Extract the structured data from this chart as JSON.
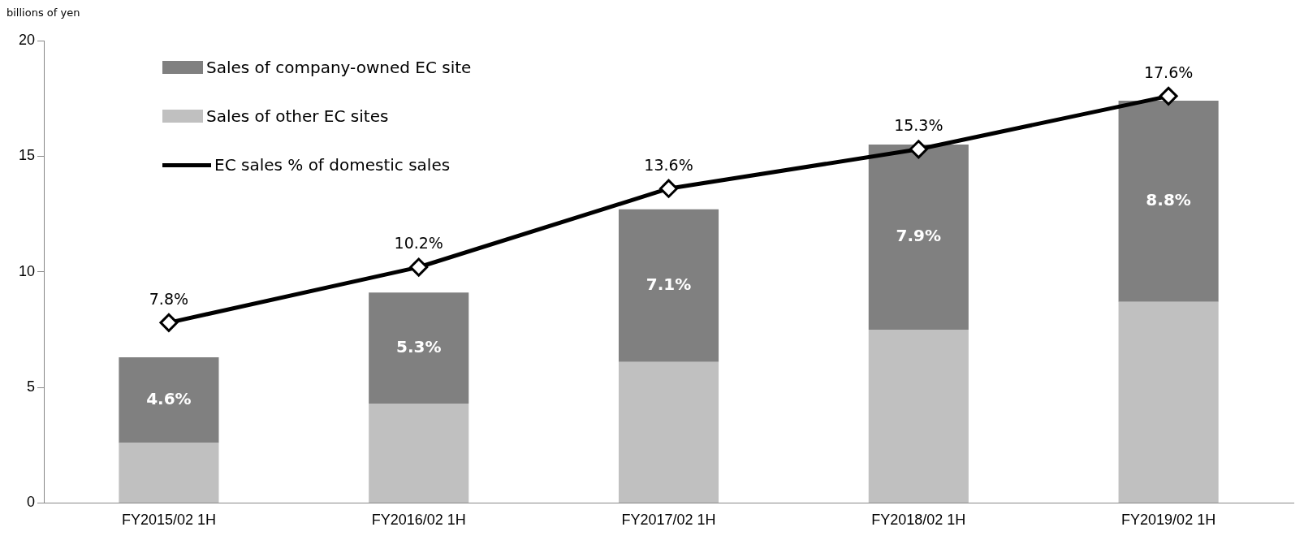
{
  "chart_data": {
    "type": "bar",
    "ylabel": "billions of yen",
    "stacked": true,
    "legend": "top left",
    "grid": false,
    "categories": [
      "FY2015/02 1H",
      "FY2016/02 1H",
      "FY2017/02 1H",
      "FY2018/02 1H",
      "FY2019/02 1H"
    ],
    "ylim": [
      0,
      20
    ],
    "yticks": [
      0,
      5,
      10,
      15,
      20
    ],
    "series": [
      {
        "name": "Sales of other EC sites",
        "color": "#c0c0c0",
        "values": [
          2.6,
          4.3,
          6.1,
          7.5,
          8.7
        ]
      },
      {
        "name": "Sales of company-owned EC site",
        "color": "#808080",
        "values": [
          3.7,
          4.8,
          6.6,
          8.0,
          8.7
        ]
      },
      {
        "name": "EC sales % of domestic sales",
        "type": "line",
        "color": "#000000",
        "marker": "diamond",
        "values": [
          7.8,
          10.2,
          13.6,
          15.3,
          17.6
        ],
        "value_labels": [
          "7.8%",
          "10.2%",
          "13.6%",
          "15.3%",
          "17.6%"
        ]
      }
    ],
    "annotations": [
      "4.6%",
      "5.3%",
      "7.1%",
      "7.9%",
      "8.8%"
    ]
  }
}
